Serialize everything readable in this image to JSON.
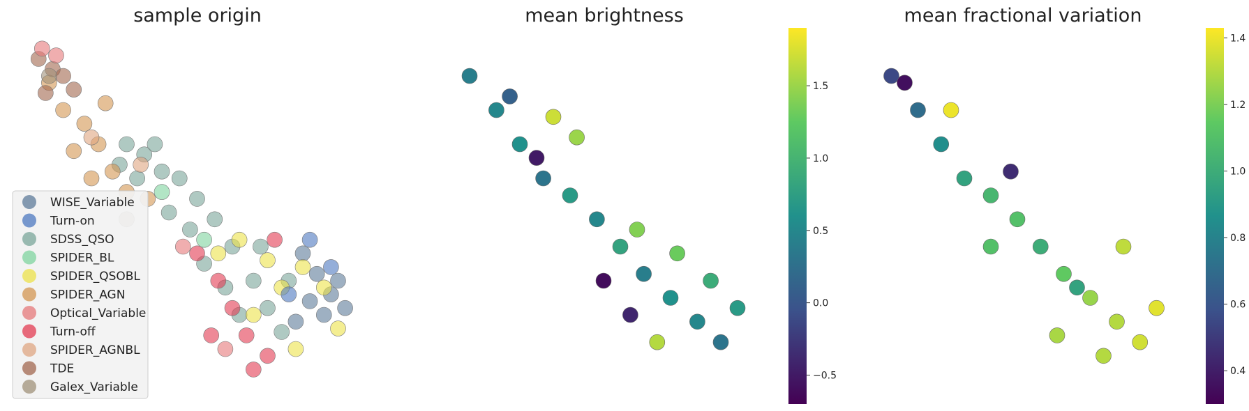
{
  "chart_data": [
    {
      "type": "scatter",
      "title": "sample origin",
      "xlabel": "",
      "ylabel": "",
      "grid": false,
      "legend": {
        "placement": "lower-left",
        "entries": [
          {
            "name": "WISE_Variable",
            "color": "#5e7b99"
          },
          {
            "name": "Turn-on",
            "color": "#4c78c0"
          },
          {
            "name": "SDSS_QSO",
            "color": "#79a59a"
          },
          {
            "name": "SPIDER_BL",
            "color": "#7fd49f"
          },
          {
            "name": "SPIDER_QSOBL",
            "color": "#ece24a"
          },
          {
            "name": "SPIDER_AGN",
            "color": "#d39652"
          },
          {
            "name": "Optical_Variable",
            "color": "#e6787a"
          },
          {
            "name": "Turn-off",
            "color": "#e33b52"
          },
          {
            "name": "SPIDER_AGNBL",
            "color": "#dfa581"
          },
          {
            "name": "TDE",
            "color": "#a1674f"
          },
          {
            "name": "Galex_Variable",
            "color": "#a09179"
          }
        ]
      },
      "series": [
        {
          "name": "SDSS_QSO",
          "points": [
            [
              0.3,
              0.3
            ],
            [
              0.35,
              0.33
            ],
            [
              0.4,
              0.38
            ],
            [
              0.45,
              0.4
            ],
            [
              0.5,
              0.46
            ],
            [
              0.38,
              0.3
            ],
            [
              0.42,
              0.5
            ],
            [
              0.55,
              0.52
            ],
            [
              0.6,
              0.6
            ],
            [
              0.48,
              0.55
            ],
            [
              0.52,
              0.65
            ],
            [
              0.66,
              0.7
            ],
            [
              0.58,
              0.72
            ],
            [
              0.7,
              0.78
            ],
            [
              0.62,
              0.8
            ],
            [
              0.74,
              0.85
            ],
            [
              0.68,
              0.6
            ],
            [
              0.76,
              0.7
            ],
            [
              0.33,
              0.4
            ],
            [
              0.28,
              0.36
            ]
          ]
        },
        {
          "name": "WISE_Variable",
          "points": [
            [
              0.8,
              0.62
            ],
            [
              0.84,
              0.68
            ],
            [
              0.88,
              0.74
            ],
            [
              0.86,
              0.8
            ],
            [
              0.9,
              0.7
            ],
            [
              0.82,
              0.76
            ],
            [
              0.78,
              0.82
            ],
            [
              0.92,
              0.78
            ]
          ]
        },
        {
          "name": "SPIDER_AGN",
          "points": [
            [
              0.12,
              0.2
            ],
            [
              0.18,
              0.24
            ],
            [
              0.22,
              0.3
            ],
            [
              0.15,
              0.32
            ],
            [
              0.26,
              0.38
            ],
            [
              0.3,
              0.44
            ],
            [
              0.2,
              0.4
            ],
            [
              0.36,
              0.46
            ],
            [
              0.08,
              0.12
            ],
            [
              0.24,
              0.18
            ]
          ]
        },
        {
          "name": "TDE",
          "points": [
            [
              0.05,
              0.05
            ],
            [
              0.09,
              0.08
            ],
            [
              0.07,
              0.15
            ],
            [
              0.12,
              0.1
            ],
            [
              0.15,
              0.14
            ]
          ]
        },
        {
          "name": "SPIDER_QSOBL",
          "points": [
            [
              0.62,
              0.58
            ],
            [
              0.7,
              0.64
            ],
            [
              0.74,
              0.72
            ],
            [
              0.66,
              0.8
            ],
            [
              0.8,
              0.66
            ],
            [
              0.86,
              0.72
            ],
            [
              0.9,
              0.84
            ],
            [
              0.78,
              0.9
            ],
            [
              0.56,
              0.62
            ]
          ]
        },
        {
          "name": "Turn-off",
          "points": [
            [
              0.56,
              0.7
            ],
            [
              0.6,
              0.78
            ],
            [
              0.64,
              0.86
            ],
            [
              0.7,
              0.92
            ],
            [
              0.66,
              0.96
            ],
            [
              0.54,
              0.86
            ],
            [
              0.72,
              0.58
            ],
            [
              0.5,
              0.62
            ]
          ]
        },
        {
          "name": "Optical_Variable",
          "points": [
            [
              0.06,
              0.02
            ],
            [
              0.1,
              0.04
            ],
            [
              0.46,
              0.6
            ],
            [
              0.58,
              0.9
            ]
          ]
        },
        {
          "name": "Turn-on",
          "points": [
            [
              0.82,
              0.58
            ],
            [
              0.88,
              0.66
            ],
            [
              0.76,
              0.74
            ]
          ]
        },
        {
          "name": "SPIDER_BL",
          "points": [
            [
              0.4,
              0.44
            ],
            [
              0.52,
              0.58
            ]
          ]
        },
        {
          "name": "SPIDER_AGNBL",
          "points": [
            [
              0.2,
              0.28
            ],
            [
              0.34,
              0.36
            ]
          ]
        },
        {
          "name": "Galex_Variable",
          "points": [
            [
              0.08,
              0.1
            ],
            [
              0.3,
              0.52
            ]
          ]
        }
      ]
    },
    {
      "type": "scatter",
      "title": "mean brightness",
      "xlabel": "",
      "ylabel": "",
      "grid": false,
      "colorbar": {
        "cmap": "viridis",
        "vmin": -0.7,
        "vmax": 1.9,
        "ticks": [
          -0.5,
          0.0,
          0.5,
          1.0,
          1.5
        ]
      },
      "points": [
        [
          0.1,
          0.1,
          0.4
        ],
        [
          0.18,
          0.2,
          0.5
        ],
        [
          0.25,
          0.3,
          0.6
        ],
        [
          0.32,
          0.4,
          0.3
        ],
        [
          0.4,
          0.45,
          0.7
        ],
        [
          0.48,
          0.52,
          0.5
        ],
        [
          0.55,
          0.6,
          0.8
        ],
        [
          0.62,
          0.68,
          0.4
        ],
        [
          0.7,
          0.75,
          0.6
        ],
        [
          0.78,
          0.82,
          0.5
        ],
        [
          0.85,
          0.88,
          0.3
        ],
        [
          0.9,
          0.78,
          0.7
        ],
        [
          0.6,
          0.55,
          1.4
        ],
        [
          0.35,
          0.22,
          1.7
        ],
        [
          0.42,
          0.28,
          1.5
        ],
        [
          0.72,
          0.62,
          1.3
        ],
        [
          0.5,
          0.7,
          -0.6
        ],
        [
          0.3,
          0.34,
          -0.5
        ],
        [
          0.66,
          0.88,
          1.6
        ],
        [
          0.82,
          0.7,
          0.9
        ],
        [
          0.22,
          0.16,
          0.1
        ],
        [
          0.58,
          0.8,
          -0.4
        ]
      ]
    },
    {
      "type": "scatter",
      "title": "mean fractional variation",
      "xlabel": "",
      "ylabel": "",
      "grid": false,
      "colorbar": {
        "cmap": "viridis",
        "vmin": 0.3,
        "vmax": 1.43,
        "ticks": [
          0.4,
          0.6,
          0.8,
          1.0,
          1.2,
          1.4
        ]
      },
      "points": [
        [
          0.1,
          0.1,
          0.55
        ],
        [
          0.18,
          0.2,
          0.7
        ],
        [
          0.25,
          0.3,
          0.85
        ],
        [
          0.32,
          0.4,
          0.95
        ],
        [
          0.4,
          0.45,
          1.05
        ],
        [
          0.48,
          0.52,
          1.1
        ],
        [
          0.55,
          0.6,
          1.0
        ],
        [
          0.62,
          0.68,
          1.15
        ],
        [
          0.7,
          0.75,
          1.25
        ],
        [
          0.78,
          0.82,
          1.3
        ],
        [
          0.85,
          0.88,
          1.35
        ],
        [
          0.9,
          0.78,
          1.38
        ],
        [
          0.14,
          0.12,
          0.35
        ],
        [
          0.28,
          0.2,
          1.4
        ],
        [
          0.46,
          0.38,
          0.45
        ],
        [
          0.66,
          0.72,
          0.95
        ],
        [
          0.8,
          0.6,
          1.32
        ],
        [
          0.6,
          0.86,
          1.28
        ],
        [
          0.74,
          0.92,
          1.3
        ],
        [
          0.4,
          0.6,
          1.1
        ]
      ]
    }
  ]
}
